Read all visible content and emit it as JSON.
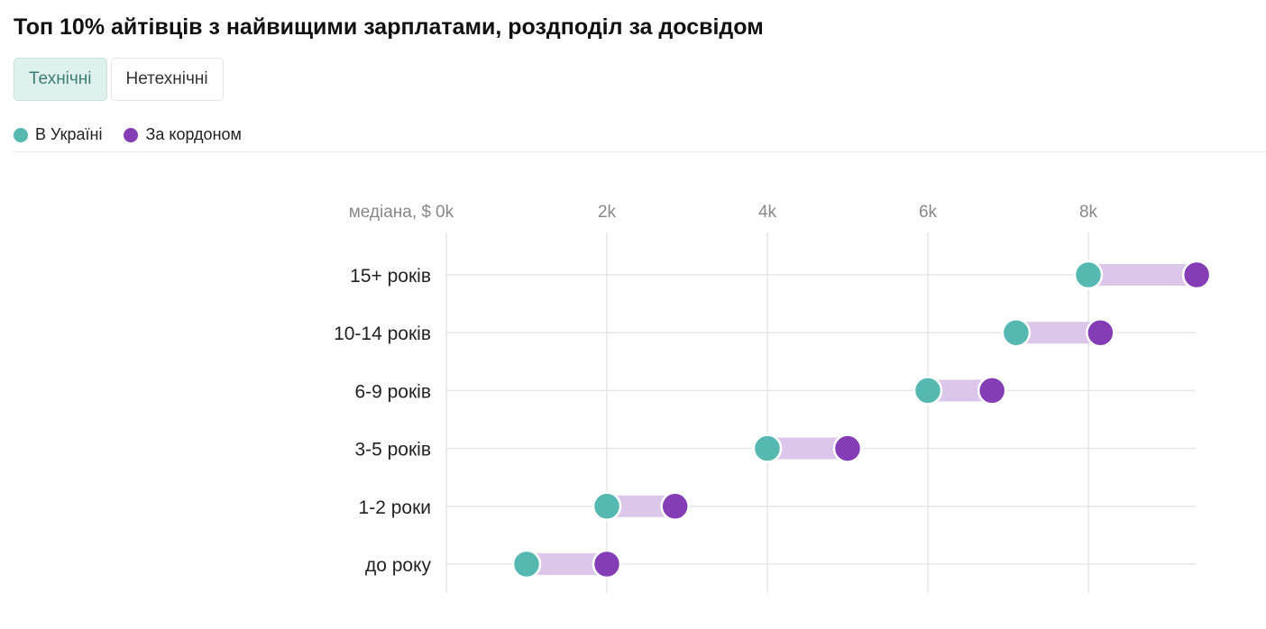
{
  "title": "Топ 10% айтівців з найвищими зарплатами, роздподіл за досвідом",
  "tabs": [
    {
      "label": "Технічні",
      "active": true
    },
    {
      "label": "Нетехнічні",
      "active": false
    }
  ],
  "legend": [
    {
      "label": "В Україні",
      "color": "#55b8b1"
    },
    {
      "label": "За кордоном",
      "color": "#853db5"
    }
  ],
  "colors": {
    "range_band": "#dcc7ea",
    "grid": "#e6e6e6"
  },
  "chart_data": {
    "type": "dumbbell",
    "xlabel": "медіана, $",
    "x_ticks": [
      "0k",
      "2k",
      "4k",
      "6k",
      "8k"
    ],
    "x_tick_values": [
      0,
      2000,
      4000,
      6000,
      8000
    ],
    "xlim": [
      0,
      9350
    ],
    "categories": [
      "15+ років",
      "10-14 років",
      "6-9 років",
      "3-5 років",
      "1-2 роки",
      "до року"
    ],
    "series": [
      {
        "name": "В Україні",
        "values": [
          8000,
          7100,
          6000,
          4000,
          2000,
          1000
        ]
      },
      {
        "name": "За кордоном",
        "values": [
          9350,
          8150,
          6800,
          5000,
          2850,
          2000
        ]
      }
    ]
  }
}
